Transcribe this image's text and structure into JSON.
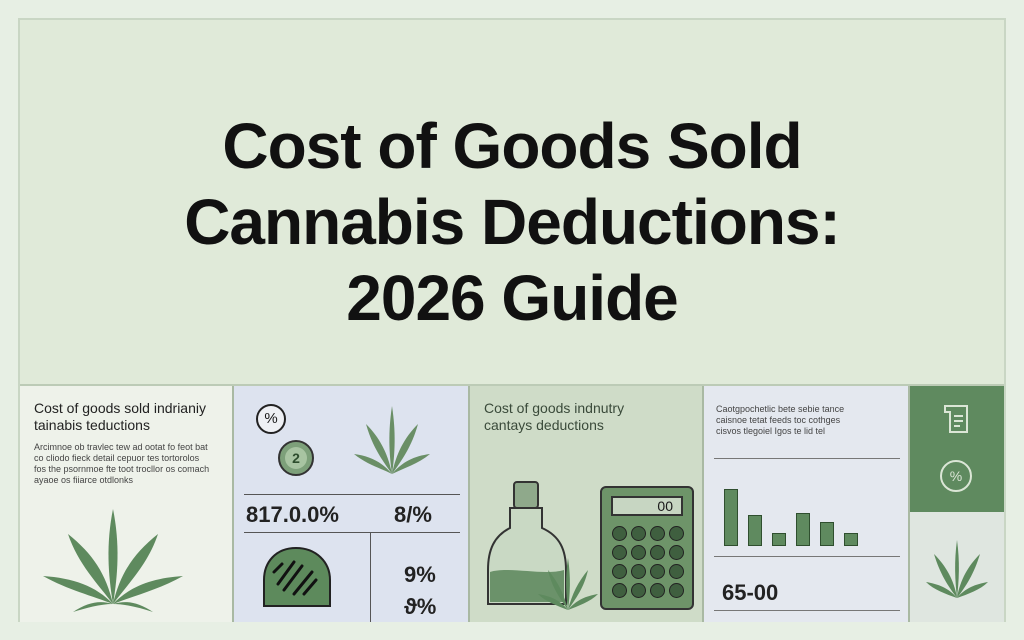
{
  "hero": {
    "title_line1": "Cost of Goods Sold",
    "title_line2": "Cannabis Deductions:",
    "title_line3": "2026 Guide"
  },
  "panels": {
    "p1": {
      "title_line1": "Cost of goods sold indrianiy",
      "title_line2": "tainabis teductions",
      "body_line1": "Arcimnoe ob travlec tew ad ootat fo feot bat",
      "body_line2": "co cliodo fieck detail cepuor tes tortorolos",
      "body_line3": "fos the psornmoe fte toot trocllor os comach",
      "body_line4": "ayaoe os fiiarce otdlonks"
    },
    "p2": {
      "badge_2": "2",
      "stat_1": "817.0.0%",
      "stat_2": "8/%",
      "stat_3": "9%",
      "stat_4": "ϑ%"
    },
    "p3": {
      "title_line1": "Cost of goods indnutry",
      "title_line2": "cantays deductions",
      "display": "00"
    },
    "p4": {
      "body_line1": "Caotgpochetlic bete sebie tance",
      "body_line2": "caisnoe tetat feeds toc cothges",
      "body_line3": "cisvos tlegoiel Igos te lid tel",
      "total": "65-00",
      "bars": [
        0.52,
        0.28,
        0.12,
        0.3,
        0.22,
        0.12
      ]
    },
    "p5": {}
  },
  "colors": {
    "accent_green": "#5f8a5f",
    "leaf_green": "#5e8a5e",
    "background": "#e7efe4"
  }
}
